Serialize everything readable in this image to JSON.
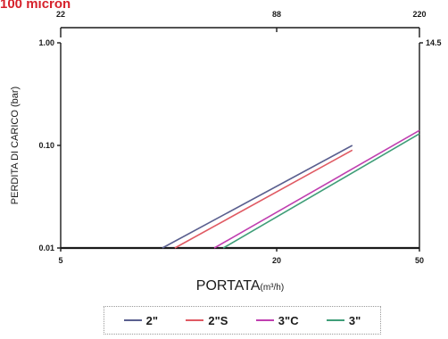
{
  "header": {
    "label": "100 micron"
  },
  "chart_data": {
    "type": "line",
    "title": "",
    "xlabel": "PORTATA",
    "xlabel_unit": "(m³/h)",
    "ylabel": "PERDITA DI CARICO (bar)",
    "x_scale": "log",
    "y_scale": "log",
    "xlim": [
      5,
      50
    ],
    "ylim": [
      0.01,
      1.0
    ],
    "x_ticks": [
      5,
      20,
      50
    ],
    "x_tick_labels": [
      "5",
      "20",
      "50"
    ],
    "y_ticks": [
      0.01,
      0.1,
      1.0
    ],
    "y_tick_labels": [
      "0.01",
      "0.10",
      "1.00"
    ],
    "top_axis_ticks": [
      "22",
      "88",
      "220"
    ],
    "right_axis_ticks": [
      "14.5"
    ],
    "grid": false,
    "legend_position": "bottom",
    "series": [
      {
        "name": "2\"",
        "color": "#5a5f8f",
        "x": [
          9.6,
          32.5
        ],
        "y": [
          0.01,
          0.1
        ]
      },
      {
        "name": "2\"S",
        "color": "#e05a63",
        "x": [
          10.4,
          32.5
        ],
        "y": [
          0.01,
          0.09
        ]
      },
      {
        "name": "3\"C",
        "color": "#c03fb0",
        "x": [
          13.4,
          50
        ],
        "y": [
          0.01,
          0.14
        ]
      },
      {
        "name": "3\"",
        "color": "#3f9e78",
        "x": [
          14.2,
          50
        ],
        "y": [
          0.01,
          0.13
        ]
      }
    ]
  },
  "legend": {
    "items": [
      {
        "label": "2\"",
        "color": "#5a5f8f"
      },
      {
        "label": "2\"S",
        "color": "#e05a63"
      },
      {
        "label": "3\"C",
        "color": "#c03fb0"
      },
      {
        "label": "3\"",
        "color": "#3f9e78"
      }
    ]
  }
}
